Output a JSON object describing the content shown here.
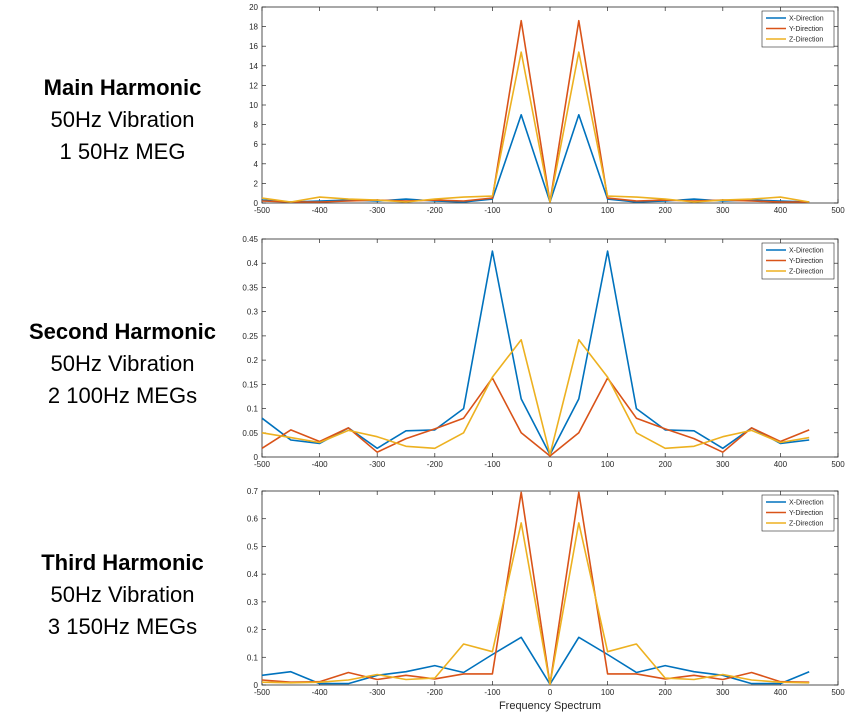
{
  "rows": [
    {
      "title": "Main Harmonic",
      "line1": "50Hz Vibration",
      "line2": "1 50Hz MEG"
    },
    {
      "title": "Second Harmonic",
      "line1": "50Hz Vibration",
      "line2": "2 100Hz MEGs"
    },
    {
      "title": "Third Harmonic",
      "line1": "50Hz Vibration",
      "line2": "3 150Hz MEGs"
    }
  ],
  "colors": {
    "x": "#0072BD",
    "y": "#D95319",
    "z": "#EDB120",
    "axis": "#262626",
    "grid": "#d0d0d0"
  },
  "chart_data": [
    {
      "type": "line",
      "xlim": [
        -500,
        500
      ],
      "ylim": [
        0,
        20
      ],
      "xticks": [
        -500,
        -400,
        -300,
        -200,
        -100,
        0,
        100,
        200,
        300,
        400,
        500
      ],
      "yticks": [
        0,
        2,
        4,
        6,
        8,
        10,
        12,
        14,
        16,
        18,
        20
      ],
      "legend_position": "top-right",
      "x": [
        -500,
        -450,
        -400,
        -350,
        -300,
        -250,
        -200,
        -150,
        -100,
        -50,
        0,
        50,
        100,
        150,
        200,
        250,
        300,
        350,
        400,
        450
      ],
      "series": [
        {
          "name": "X-Direction",
          "values": [
            0.3,
            0.1,
            0.2,
            0.3,
            0.2,
            0.4,
            0.2,
            0.1,
            0.4,
            9.0,
            0.1,
            9.0,
            0.4,
            0.1,
            0.2,
            0.4,
            0.2,
            0.3,
            0.2,
            0.1
          ]
        },
        {
          "name": "Y-Direction",
          "values": [
            0.2,
            0.1,
            0.1,
            0.2,
            0.3,
            0.2,
            0.3,
            0.2,
            0.5,
            18.6,
            0.1,
            18.6,
            0.5,
            0.2,
            0.3,
            0.2,
            0.3,
            0.2,
            0.1,
            0.1
          ]
        },
        {
          "name": "Z-Direction",
          "values": [
            0.5,
            0.1,
            0.6,
            0.4,
            0.3,
            0.1,
            0.4,
            0.6,
            0.7,
            15.4,
            0.1,
            15.4,
            0.7,
            0.6,
            0.4,
            0.1,
            0.3,
            0.4,
            0.6,
            0.1
          ]
        }
      ]
    },
    {
      "type": "line",
      "xlim": [
        -500,
        500
      ],
      "ylim": [
        0,
        0.45
      ],
      "xticks": [
        -500,
        -400,
        -300,
        -200,
        -100,
        0,
        100,
        200,
        300,
        400,
        500
      ],
      "yticks": [
        0,
        0.05,
        0.1,
        0.15,
        0.2,
        0.25,
        0.3,
        0.35,
        0.4,
        0.45
      ],
      "legend_position": "top-right",
      "x": [
        -500,
        -450,
        -400,
        -350,
        -300,
        -250,
        -200,
        -150,
        -100,
        -50,
        0,
        50,
        100,
        150,
        200,
        250,
        300,
        350,
        400,
        450
      ],
      "series": [
        {
          "name": "X-Direction",
          "values": [
            0.08,
            0.035,
            0.028,
            0.06,
            0.018,
            0.054,
            0.056,
            0.1,
            0.425,
            0.12,
            0.005,
            0.12,
            0.425,
            0.1,
            0.056,
            0.054,
            0.018,
            0.06,
            0.028,
            0.035
          ]
        },
        {
          "name": "Y-Direction",
          "values": [
            0.018,
            0.056,
            0.032,
            0.06,
            0.01,
            0.038,
            0.058,
            0.08,
            0.163,
            0.05,
            0.002,
            0.05,
            0.163,
            0.08,
            0.058,
            0.038,
            0.01,
            0.06,
            0.032,
            0.056
          ]
        },
        {
          "name": "Z-Direction",
          "values": [
            0.05,
            0.04,
            0.03,
            0.055,
            0.042,
            0.022,
            0.018,
            0.05,
            0.165,
            0.242,
            0.005,
            0.242,
            0.165,
            0.05,
            0.018,
            0.022,
            0.042,
            0.055,
            0.03,
            0.04
          ]
        }
      ]
    },
    {
      "type": "line",
      "xlim": [
        -500,
        500
      ],
      "ylim": [
        0,
        0.7
      ],
      "xticks": [
        -500,
        -400,
        -300,
        -200,
        -100,
        0,
        100,
        200,
        300,
        400,
        500
      ],
      "yticks": [
        0,
        0.1,
        0.2,
        0.3,
        0.4,
        0.5,
        0.6,
        0.7
      ],
      "xlabel": "Frequency Spectrum",
      "legend_position": "top-right",
      "x": [
        -500,
        -450,
        -400,
        -350,
        -300,
        -250,
        -200,
        -150,
        -100,
        -50,
        0,
        50,
        100,
        150,
        200,
        250,
        300,
        350,
        400,
        450
      ],
      "series": [
        {
          "name": "X-Direction",
          "values": [
            0.035,
            0.048,
            0.005,
            0.005,
            0.035,
            0.048,
            0.07,
            0.045,
            0.11,
            0.172,
            0.003,
            0.172,
            0.11,
            0.045,
            0.07,
            0.048,
            0.035,
            0.005,
            0.005,
            0.048
          ]
        },
        {
          "name": "Y-Direction",
          "values": [
            0.018,
            0.01,
            0.012,
            0.045,
            0.02,
            0.035,
            0.022,
            0.04,
            0.04,
            0.695,
            0.003,
            0.695,
            0.04,
            0.04,
            0.022,
            0.035,
            0.02,
            0.045,
            0.012,
            0.01
          ]
        },
        {
          "name": "Z-Direction",
          "values": [
            0.01,
            0.008,
            0.01,
            0.018,
            0.038,
            0.02,
            0.025,
            0.148,
            0.12,
            0.585,
            0.003,
            0.585,
            0.12,
            0.148,
            0.025,
            0.02,
            0.038,
            0.018,
            0.01,
            0.008
          ]
        }
      ]
    }
  ]
}
